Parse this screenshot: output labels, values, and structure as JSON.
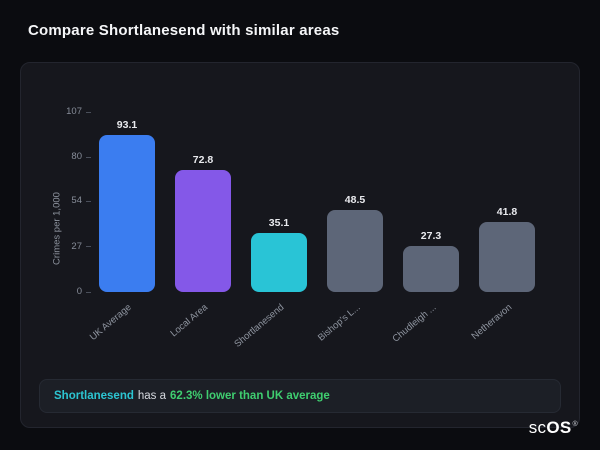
{
  "page": {
    "title": "Compare Shortlanesend with similar areas"
  },
  "chart_data": {
    "type": "bar",
    "categories": [
      "UK Average",
      "Local Area",
      "Shortlanesend",
      "Bishop's L...",
      "Chudleigh ...",
      "Netheravon"
    ],
    "values": [
      93.1,
      72.8,
      35.1,
      48.5,
      27.3,
      41.8
    ],
    "bar_colors": [
      "#3b7df0",
      "#8458e8",
      "#29c4d6",
      "#5d6678",
      "#5d6678",
      "#5d6678"
    ],
    "title": "",
    "xlabel": "",
    "ylabel": "Crimes per 1,000",
    "yticks": [
      0,
      27,
      54,
      80,
      107
    ],
    "ylim": [
      0,
      107
    ],
    "grid": false,
    "legend": "none",
    "value_labels": [
      "93.1",
      "72.8",
      "35.1",
      "48.5",
      "27.3",
      "41.8"
    ]
  },
  "footer_note": {
    "area_name": "Shortlanesend",
    "middle_text": "has a",
    "highlight_text": "62.3% lower than UK average",
    "accent_color": "#2cc5d2",
    "highlight_color": "#3fce70"
  },
  "logo": {
    "prefix": "sc",
    "suffix": "OS",
    "registered_mark": "®"
  },
  "colors": {
    "page_background": "#0b0c10",
    "card_background": "#16171d",
    "note_background": "#1c1f26"
  }
}
